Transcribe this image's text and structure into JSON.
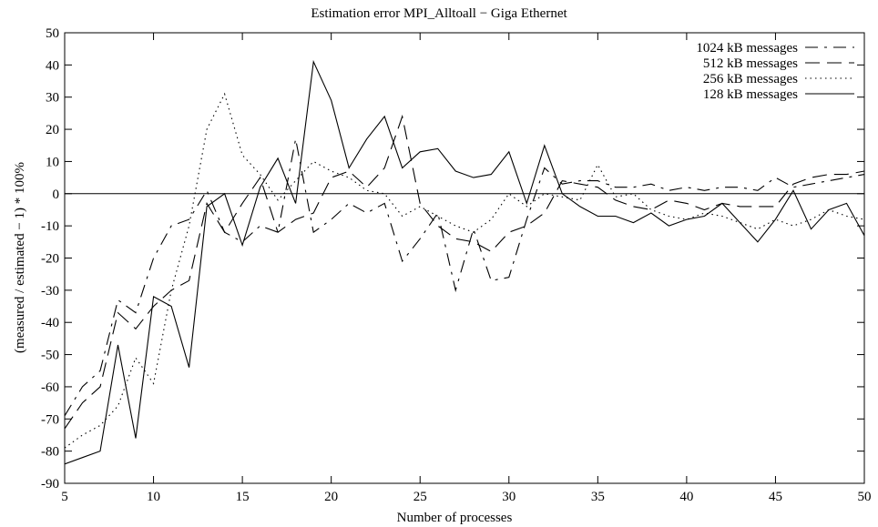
{
  "chart_data": {
    "type": "line",
    "title": "Estimation error MPI_Alltoall − Giga Ethernet",
    "xlabel": "Number of processes",
    "ylabel": "(measured / estimated − 1) * 100%",
    "xlim": [
      5,
      50
    ],
    "ylim": [
      -90,
      50
    ],
    "xticks": [
      5,
      10,
      15,
      20,
      25,
      30,
      35,
      40,
      45,
      50
    ],
    "yticks": [
      -90,
      -80,
      -70,
      -60,
      -50,
      -40,
      -30,
      -20,
      -10,
      0,
      10,
      20,
      30,
      40,
      50
    ],
    "zero_line": true,
    "grid": false,
    "legend_position": "top-right",
    "x": [
      5,
      6,
      7,
      8,
      9,
      10,
      11,
      12,
      13,
      14,
      15,
      16,
      17,
      18,
      19,
      20,
      21,
      22,
      23,
      24,
      25,
      26,
      27,
      28,
      29,
      30,
      31,
      32,
      33,
      34,
      35,
      36,
      37,
      38,
      39,
      40,
      41,
      42,
      43,
      44,
      45,
      46,
      47,
      48,
      49,
      50
    ],
    "series": [
      {
        "name": "1024 kB messages",
        "dash": "long-short",
        "values": [
          -69,
          -60,
          -55,
          -33,
          -37,
          -20,
          -10,
          -8,
          1,
          -12,
          -15,
          -10,
          -12,
          17,
          -12,
          -8,
          -3,
          -6,
          -3,
          -21,
          -14,
          -6,
          -30,
          -11,
          -27,
          -26,
          -8,
          8,
          3,
          4,
          4,
          2,
          2,
          3,
          1,
          2,
          1,
          2,
          2,
          1,
          5,
          2,
          3,
          4,
          5,
          6
        ],
        "style": "dash-dot"
      },
      {
        "name": "512 kB messages",
        "dash": "long",
        "values": [
          -73,
          -65,
          -60,
          -37,
          -42,
          -35,
          -30,
          -27,
          -3,
          -12,
          -3,
          5,
          -12,
          -8,
          -6,
          5,
          7,
          2,
          8,
          24,
          -3,
          -10,
          -14,
          -15,
          -18,
          -12,
          -10,
          -6,
          4,
          3,
          2,
          -2,
          -4,
          -5,
          -2,
          -3,
          -5,
          -3,
          -4,
          -4,
          -4,
          3,
          5,
          6,
          6,
          7
        ],
        "style": "dashed"
      },
      {
        "name": "256 kB messages",
        "dash": "dotted",
        "values": [
          -79,
          -75,
          -72,
          -66,
          -51,
          -59,
          -30,
          -10,
          20,
          31,
          12,
          6,
          -2,
          4,
          10,
          7,
          5,
          1,
          0,
          -7,
          -4,
          -7,
          -10,
          -12,
          -8,
          0,
          -4,
          0,
          -1,
          -2,
          9,
          -1,
          0,
          -5,
          -7,
          -8,
          -6,
          -7,
          -9,
          -11,
          -8,
          -10,
          -8,
          -5,
          -7,
          -8
        ],
        "style": "dotted"
      },
      {
        "name": "128 kB messages",
        "dash": "solid",
        "values": [
          -84,
          -82,
          -80,
          -47,
          -76,
          -32,
          -35,
          -54,
          -4,
          0,
          -16,
          2,
          11,
          -3,
          41,
          29,
          8,
          17,
          24,
          8,
          13,
          14,
          7,
          5,
          6,
          13,
          -3,
          15,
          0,
          -4,
          -7,
          -7,
          -9,
          -6,
          -10,
          -8,
          -7,
          -3,
          -9,
          -15,
          -8,
          1,
          -11,
          -5,
          -3,
          -13
        ],
        "style": "solid"
      }
    ]
  }
}
